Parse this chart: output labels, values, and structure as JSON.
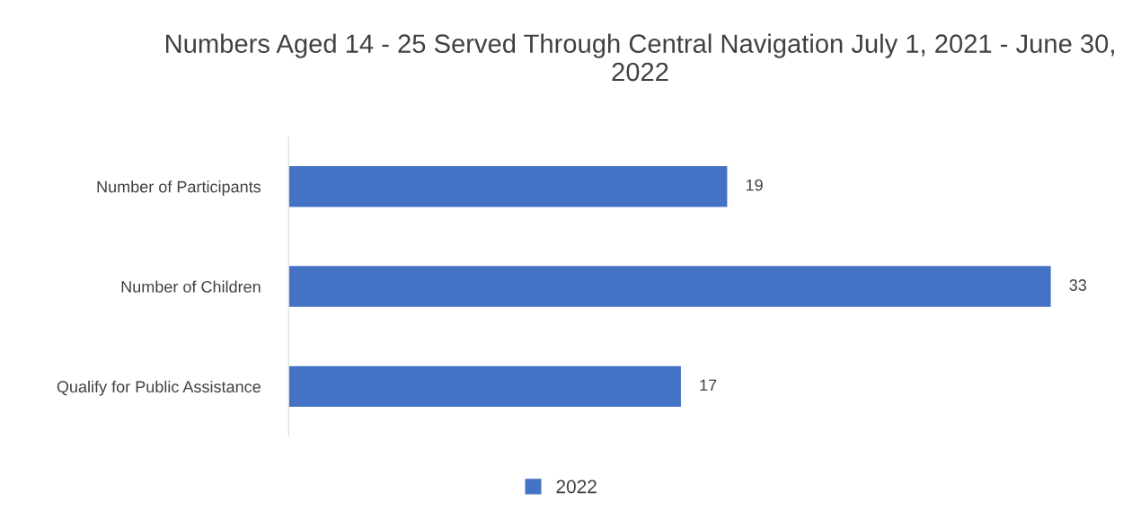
{
  "chart_data": {
    "type": "bar",
    "orientation": "horizontal",
    "title": "Numbers Aged 14 - 25 Served Through Central Navigation July 1, 2021 - June 30, 2022",
    "categories": [
      "Number of Participants",
      "Number of Children",
      "Qualify for Public Assistance"
    ],
    "series": [
      {
        "name": "2022",
        "color": "#4472c4",
        "values": [
          19,
          33,
          17
        ]
      }
    ],
    "data_labels": true,
    "legend": "bottom",
    "grid": false
  }
}
